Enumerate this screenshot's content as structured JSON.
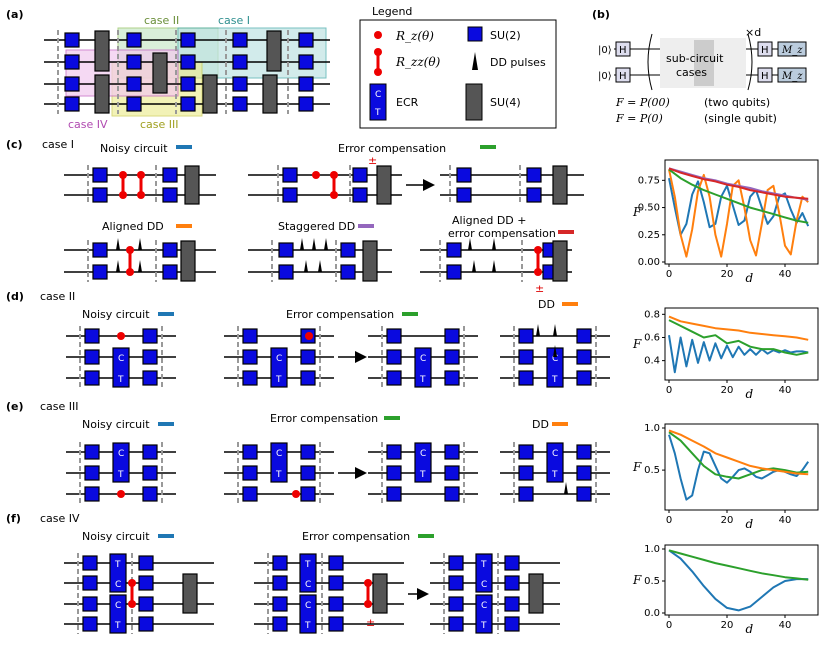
{
  "panels": {
    "a": "(a)",
    "b": "(b)",
    "c": "(c)",
    "d": "(d)",
    "e": "(e)",
    "f": "(f)"
  },
  "panel_a": {
    "case1": "case I",
    "case2": "case II",
    "case3": "case III",
    "case4": "case IV"
  },
  "legend": {
    "title": "Legend",
    "rz": "R_z(θ)",
    "rzz": "R_zz(θ)",
    "su2": "SU(2)",
    "dd": "DD pulses",
    "ecr": "ECR",
    "su4": "SU(4)",
    "ecr_c": "C",
    "ecr_t": "T"
  },
  "panel_b": {
    "ket1": "|0⟩",
    "ket2": "|0⟩",
    "h": "H",
    "sub1": "sub-circuit",
    "sub2": "cases",
    "xd": "×d",
    "mz": "M_z",
    "f2": "F = P(00)",
    "f2note": "(two qubits)",
    "f1": "F = P(0)",
    "f1note": "(single qubit)"
  },
  "case1": {
    "title": "case I",
    "noisy": "Noisy circuit",
    "ec": "Error compensation",
    "aligned": "Aligned DD",
    "staggered": "Staggered DD",
    "aligned_ec1": "Aligned DD +",
    "aligned_ec2": "error compensation",
    "pm": "±"
  },
  "case2": {
    "title": "case II",
    "noisy": "Noisy circuit",
    "ec": "Error compensation",
    "dd": "DD",
    "c": "C",
    "t": "T"
  },
  "case3": {
    "title": "case III",
    "noisy": "Noisy circuit",
    "ec": "Error compensation",
    "dd": "DD",
    "c": "C",
    "t": "T"
  },
  "case4": {
    "title": "case IV",
    "noisy": "Noisy circuit",
    "ec": "Error compensation",
    "c": "C",
    "t": "T",
    "pm": "±"
  },
  "colors": {
    "blue": "#1f77b4",
    "orange": "#ff7f0e",
    "green": "#2ca02c",
    "red": "#d62728",
    "purple": "#9467bd",
    "gate": "#0a0adf"
  },
  "chart_data": [
    {
      "type": "line",
      "title": "case I",
      "xlabel": "d",
      "ylabel": "F",
      "xlim": [
        0,
        50
      ],
      "ylim": [
        0,
        0.9
      ],
      "xticks": [
        "0",
        "20",
        "40"
      ],
      "yticks": [
        "0.00",
        "0.25",
        "0.50",
        "0.75"
      ],
      "ytick_values": [
        0,
        0.25,
        0.5,
        0.75
      ],
      "series": [
        {
          "name": "Noisy circuit",
          "color": "#1f77b4",
          "x": [
            0,
            2,
            4,
            6,
            8,
            10,
            12,
            14,
            16,
            18,
            20,
            22,
            24,
            26,
            28,
            30,
            32,
            34,
            36,
            38,
            40,
            42,
            44,
            46,
            48
          ],
          "y": [
            0.77,
            0.5,
            0.25,
            0.35,
            0.62,
            0.74,
            0.55,
            0.32,
            0.35,
            0.6,
            0.7,
            0.52,
            0.34,
            0.38,
            0.6,
            0.66,
            0.5,
            0.35,
            0.42,
            0.6,
            0.63,
            0.48,
            0.36,
            0.45,
            0.33
          ]
        },
        {
          "name": "Aligned DD",
          "color": "#ff7f0e",
          "x": [
            0,
            2,
            4,
            6,
            8,
            10,
            12,
            14,
            16,
            18,
            20,
            22,
            24,
            26,
            28,
            30,
            32,
            34,
            36,
            38,
            40,
            42,
            44,
            46,
            48
          ],
          "y": [
            0.85,
            0.6,
            0.25,
            0.05,
            0.3,
            0.65,
            0.8,
            0.6,
            0.25,
            0.05,
            0.35,
            0.7,
            0.75,
            0.5,
            0.2,
            0.06,
            0.35,
            0.66,
            0.7,
            0.45,
            0.15,
            0.07,
            0.38,
            0.6,
            0.55
          ]
        },
        {
          "name": "Error compensation",
          "color": "#2ca02c",
          "x": [
            0,
            4,
            8,
            12,
            16,
            20,
            24,
            28,
            32,
            36,
            40,
            44,
            48
          ],
          "y": [
            0.85,
            0.77,
            0.71,
            0.66,
            0.62,
            0.58,
            0.54,
            0.5,
            0.47,
            0.44,
            0.41,
            0.38,
            0.36
          ]
        },
        {
          "name": "Staggered DD",
          "color": "#9467bd",
          "x": [
            0,
            4,
            8,
            12,
            16,
            20,
            24,
            28,
            32,
            36,
            40,
            44,
            48
          ],
          "y": [
            0.86,
            0.83,
            0.8,
            0.77,
            0.75,
            0.72,
            0.7,
            0.68,
            0.65,
            0.63,
            0.61,
            0.59,
            0.57
          ]
        },
        {
          "name": "Aligned DD + error compensation",
          "color": "#d62728",
          "x": [
            0,
            4,
            8,
            12,
            16,
            20,
            24,
            28,
            32,
            36,
            40,
            44,
            48
          ],
          "y": [
            0.86,
            0.82,
            0.79,
            0.76,
            0.74,
            0.71,
            0.69,
            0.66,
            0.64,
            0.62,
            0.6,
            0.59,
            0.58
          ]
        }
      ]
    },
    {
      "type": "line",
      "title": "case II",
      "xlabel": "d",
      "ylabel": "F",
      "xlim": [
        0,
        50
      ],
      "ylim": [
        0.25,
        0.82
      ],
      "xticks": [
        "0",
        "20",
        "40"
      ],
      "yticks": [
        "0.4",
        "0.6",
        "0.8"
      ],
      "ytick_values": [
        0.4,
        0.6,
        0.8
      ],
      "series": [
        {
          "name": "Noisy circuit",
          "color": "#1f77b4",
          "x": [
            0,
            2,
            4,
            6,
            8,
            10,
            12,
            14,
            16,
            18,
            20,
            22,
            24,
            26,
            28,
            30,
            32,
            34,
            36,
            38,
            40,
            42,
            44,
            46,
            48
          ],
          "y": [
            0.62,
            0.3,
            0.6,
            0.35,
            0.58,
            0.38,
            0.56,
            0.4,
            0.55,
            0.42,
            0.53,
            0.43,
            0.52,
            0.45,
            0.5,
            0.45,
            0.5,
            0.46,
            0.49,
            0.47,
            0.49,
            0.47,
            0.48,
            0.48,
            0.47
          ]
        },
        {
          "name": "Error compensation",
          "color": "#2ca02c",
          "x": [
            0,
            4,
            8,
            12,
            16,
            20,
            24,
            28,
            32,
            36,
            40,
            44,
            48
          ],
          "y": [
            0.75,
            0.7,
            0.65,
            0.6,
            0.62,
            0.55,
            0.57,
            0.52,
            0.5,
            0.5,
            0.47,
            0.45,
            0.47
          ]
        },
        {
          "name": "DD",
          "color": "#ff7f0e",
          "x": [
            0,
            4,
            8,
            12,
            16,
            20,
            24,
            28,
            32,
            36,
            40,
            44,
            48
          ],
          "y": [
            0.78,
            0.74,
            0.72,
            0.7,
            0.68,
            0.67,
            0.66,
            0.64,
            0.63,
            0.62,
            0.61,
            0.6,
            0.58
          ]
        }
      ]
    },
    {
      "type": "line",
      "title": "case III",
      "xlabel": "d",
      "ylabel": "F",
      "xlim": [
        0,
        50
      ],
      "ylim": [
        0.05,
        1.0
      ],
      "xticks": [
        "0",
        "20",
        "40"
      ],
      "yticks": [
        "0.5",
        "1.0"
      ],
      "ytick_values": [
        0.5,
        1.0
      ],
      "series": [
        {
          "name": "Noisy circuit",
          "color": "#1f77b4",
          "x": [
            0,
            2,
            4,
            6,
            8,
            10,
            12,
            14,
            16,
            18,
            20,
            22,
            24,
            26,
            28,
            30,
            32,
            34,
            36,
            38,
            40,
            42,
            44,
            46,
            48
          ],
          "y": [
            0.92,
            0.7,
            0.4,
            0.15,
            0.2,
            0.5,
            0.72,
            0.7,
            0.55,
            0.4,
            0.35,
            0.42,
            0.5,
            0.52,
            0.48,
            0.42,
            0.4,
            0.44,
            0.48,
            0.5,
            0.48,
            0.45,
            0.43,
            0.5,
            0.6
          ]
        },
        {
          "name": "Error compensation",
          "color": "#2ca02c",
          "x": [
            0,
            4,
            8,
            12,
            16,
            20,
            24,
            28,
            32,
            36,
            40,
            44,
            48
          ],
          "y": [
            0.95,
            0.85,
            0.7,
            0.55,
            0.45,
            0.42,
            0.4,
            0.45,
            0.5,
            0.52,
            0.5,
            0.47,
            0.48
          ]
        },
        {
          "name": "DD",
          "color": "#ff7f0e",
          "x": [
            0,
            4,
            8,
            12,
            16,
            20,
            24,
            28,
            32,
            36,
            40,
            44,
            48
          ],
          "y": [
            0.97,
            0.92,
            0.85,
            0.78,
            0.7,
            0.65,
            0.6,
            0.55,
            0.52,
            0.5,
            0.48,
            0.46,
            0.45
          ]
        }
      ]
    },
    {
      "type": "line",
      "title": "case IV",
      "xlabel": "d",
      "ylabel": "F",
      "xlim": [
        0,
        50
      ],
      "ylim": [
        0,
        1.0
      ],
      "xticks": [
        "0",
        "20",
        "40"
      ],
      "yticks": [
        "0.0",
        "0.5",
        "1.0"
      ],
      "ytick_values": [
        0,
        0.5,
        1.0
      ],
      "series": [
        {
          "name": "Noisy circuit",
          "color": "#1f77b4",
          "x": [
            0,
            4,
            8,
            12,
            16,
            20,
            24,
            28,
            32,
            36,
            40,
            44,
            48
          ],
          "y": [
            0.98,
            0.85,
            0.65,
            0.42,
            0.22,
            0.08,
            0.04,
            0.1,
            0.25,
            0.4,
            0.5,
            0.53,
            0.53
          ]
        },
        {
          "name": "Error compensation",
          "color": "#2ca02c",
          "x": [
            0,
            4,
            8,
            12,
            16,
            20,
            24,
            28,
            32,
            36,
            40,
            44,
            48
          ],
          "y": [
            0.98,
            0.93,
            0.88,
            0.83,
            0.78,
            0.74,
            0.7,
            0.66,
            0.62,
            0.59,
            0.56,
            0.54,
            0.52
          ]
        }
      ]
    }
  ]
}
